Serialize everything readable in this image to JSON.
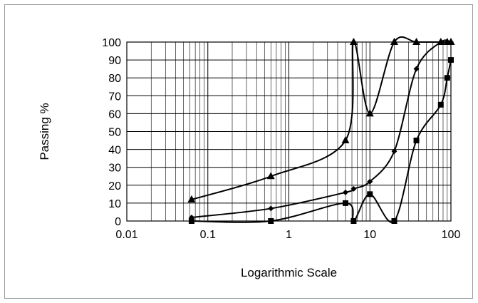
{
  "chart_data": {
    "type": "line",
    "title": "",
    "xlabel": "Logarithmic Scale",
    "ylabel": "Passing %",
    "x_scale": "log",
    "xlim": [
      0.01,
      100
    ],
    "ylim": [
      0,
      100
    ],
    "x_tick_labels": [
      "0.01",
      "0.1",
      "1",
      "10",
      "100"
    ],
    "y_tick_labels": [
      "0",
      "10",
      "20",
      "30",
      "40",
      "50",
      "60",
      "70",
      "80",
      "90",
      "100"
    ],
    "grid": true,
    "legend": "none",
    "series": [
      {
        "marker": "triangle",
        "color": "#000000",
        "points": [
          [
            0.063,
            12
          ],
          [
            0.6,
            25
          ],
          [
            5,
            45
          ],
          [
            6.3,
            100
          ],
          [
            10,
            60
          ],
          [
            20,
            100
          ],
          [
            37.5,
            100
          ],
          [
            75,
            100
          ],
          [
            90,
            100
          ],
          [
            100,
            100
          ]
        ]
      },
      {
        "marker": "diamond",
        "color": "#000000",
        "points": [
          [
            0.063,
            2
          ],
          [
            0.6,
            7
          ],
          [
            5,
            16
          ],
          [
            6.3,
            18
          ],
          [
            10,
            22
          ],
          [
            20,
            39
          ],
          [
            37.5,
            85
          ],
          [
            75,
            100
          ],
          [
            100,
            100
          ]
        ]
      },
      {
        "marker": "square",
        "color": "#000000",
        "points": [
          [
            0.063,
            0
          ],
          [
            0.6,
            0
          ],
          [
            5,
            10
          ],
          [
            6.3,
            0
          ],
          [
            10,
            15
          ],
          [
            20,
            0
          ],
          [
            37.5,
            45
          ],
          [
            75,
            65
          ],
          [
            90,
            80
          ],
          [
            100,
            90
          ]
        ]
      }
    ]
  }
}
